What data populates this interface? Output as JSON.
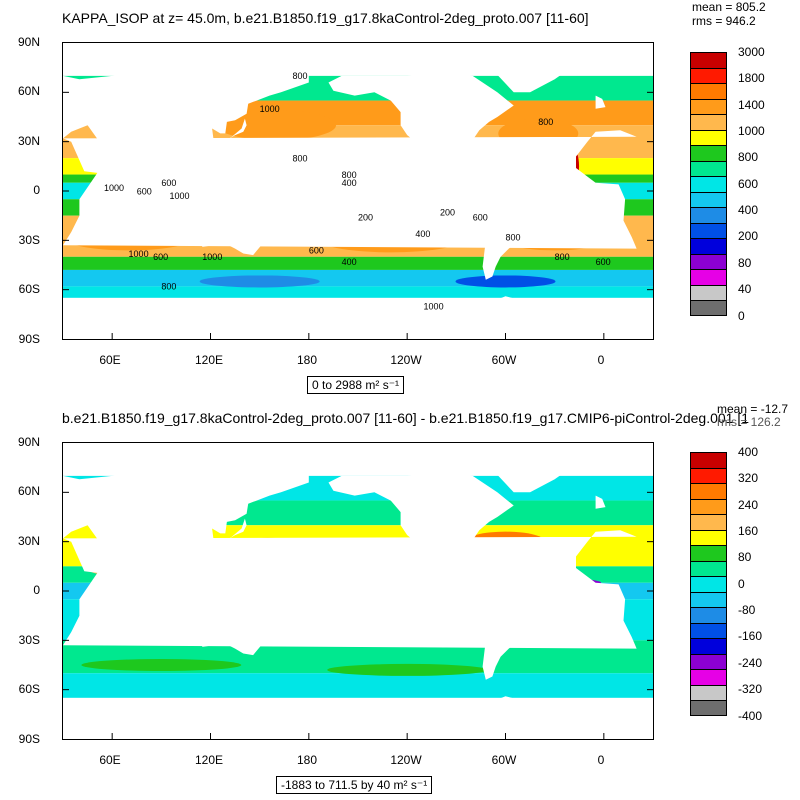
{
  "panel1": {
    "title": "KAPPA_ISOP at z=  45.0m, b.e21.B1850.f19_g17.8kaControl-2deg_proto.007 [11-60]",
    "mean": "mean = 805.2",
    "rms": "rms = 946.2",
    "range": "0 to 2988 m² s⁻¹",
    "colorbar_labels": [
      "3000",
      "1800",
      "1400",
      "1000",
      "800",
      "600",
      "400",
      "200",
      "80",
      "40",
      "0"
    ],
    "colorbar_colors": [
      "#c80000",
      "#ff1a00",
      "#ff7a00",
      "#ff9b1a",
      "#ffb84d",
      "#ffff00",
      "#1ec81e",
      "#00e88f",
      "#00e6e6",
      "#14c8f0",
      "#1e8ce6",
      "#0050e6",
      "#0000dc",
      "#8c00d2",
      "#e600e6",
      "#c8c8c8",
      "#6e6e6e"
    ],
    "contour_labels": [
      "800",
      "1000",
      "800",
      "800",
      "600",
      "1000",
      "600",
      "1000",
      "800",
      "400",
      "200",
      "200",
      "400",
      "600",
      "800",
      "1000",
      "600",
      "1000",
      "600",
      "400",
      "800",
      "1000",
      "800",
      "600"
    ]
  },
  "panel2": {
    "title": "b.e21.B1850.f19_g17.8kaControl-2deg_proto.007 [11-60] - b.e21.B1850.f19_g17.CMIP6-piControl-2deg.001 [1",
    "mean": "mean = -12.7",
    "rms": "rms = 126.2",
    "range": "-1883 to 711.5 by 40 m² s⁻¹",
    "colorbar_labels": [
      "400",
      "320",
      "240",
      "160",
      "80",
      "0",
      "-80",
      "-160",
      "-240",
      "-320",
      "-400"
    ],
    "colorbar_colors": [
      "#c80000",
      "#ff1a00",
      "#ff7a00",
      "#ff9b1a",
      "#ffb84d",
      "#ffff00",
      "#1ec81e",
      "#00e88f",
      "#00e6e6",
      "#14c8f0",
      "#1e8ce6",
      "#0050e6",
      "#0000dc",
      "#8c00d2",
      "#e600e6",
      "#c8c8c8",
      "#6e6e6e"
    ]
  },
  "axes": {
    "lat_labels": [
      "90N",
      "60N",
      "30N",
      "0",
      "30S",
      "60S",
      "90S"
    ],
    "lon_labels": [
      "60E",
      "120E",
      "180",
      "120W",
      "60W",
      "0"
    ]
  }
}
